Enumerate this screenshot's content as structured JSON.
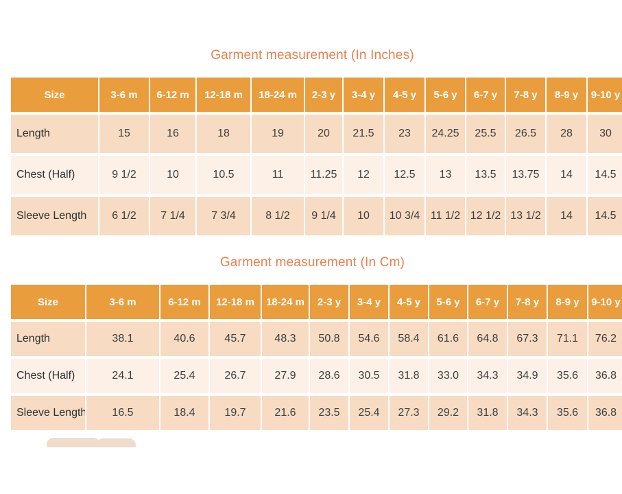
{
  "colors": {
    "title_text": "#e8814d",
    "header_bg": "#ea9d3c",
    "header_text": "#ffffff",
    "row_dark_bg": "#f7dcc3",
    "row_light_bg": "#fcf0e7",
    "value_text": "#3d3d3d",
    "label_text": "#2f2f2f"
  },
  "decoration": {
    "watermark_icon": "open-book-icon"
  },
  "tables": [
    {
      "title": "Garment measurement (In Inches)",
      "columns": [
        "Size",
        "3-6 m",
        "6-12 m",
        "12-18 m",
        "18-24 m",
        "2-3 y",
        "3-4 y",
        "4-5 y",
        "5-6 y",
        "6-7 y",
        "7-8 y",
        "8-9 y",
        "9-10 y"
      ],
      "rows": [
        {
          "label": "Length",
          "values": [
            "15",
            "16",
            "18",
            "19",
            "20",
            "21.5",
            "23",
            "24.25",
            "25.5",
            "26.5",
            "28",
            "30"
          ]
        },
        {
          "label": "Chest (Half)",
          "values": [
            "9 1/2",
            "10",
            "10.5",
            "11",
            "11.25",
            "12",
            "12.5",
            "13",
            "13.5",
            "13.75",
            "14",
            "14.5"
          ]
        },
        {
          "label": "Sleeve Length",
          "values": [
            "6 1/2",
            "7 1/4",
            "7 3/4",
            "8 1/2",
            "9 1/4",
            "10",
            "10 3/4",
            "11 1/2",
            "12 1/2",
            "13 1/2",
            "14",
            "14.5"
          ]
        }
      ]
    },
    {
      "title": "Garment measurement (In Cm)",
      "columns": [
        "Size",
        "3-6 m",
        "6-12 m",
        "12-18 m",
        "18-24 m",
        "2-3 y",
        "3-4 y",
        "4-5 y",
        "5-6 y",
        "6-7 y",
        "7-8 y",
        "8-9 y",
        "9-10 y"
      ],
      "rows": [
        {
          "label": "Length",
          "values": [
            "38.1",
            "40.6",
            "45.7",
            "48.3",
            "50.8",
            "54.6",
            "58.4",
            "61.6",
            "64.8",
            "67.3",
            "71.1",
            "76.2"
          ]
        },
        {
          "label": "Chest (Half)",
          "values": [
            "24.1",
            "25.4",
            "26.7",
            "27.9",
            "28.6",
            "30.5",
            "31.8",
            "33.0",
            "34.3",
            "34.9",
            "35.6",
            "36.8"
          ]
        },
        {
          "label": "Sleeve Length",
          "values": [
            "16.5",
            "18.4",
            "19.7",
            "21.6",
            "23.5",
            "25.4",
            "27.3",
            "29.2",
            "31.8",
            "34.3",
            "35.6",
            "36.8"
          ]
        }
      ]
    }
  ]
}
